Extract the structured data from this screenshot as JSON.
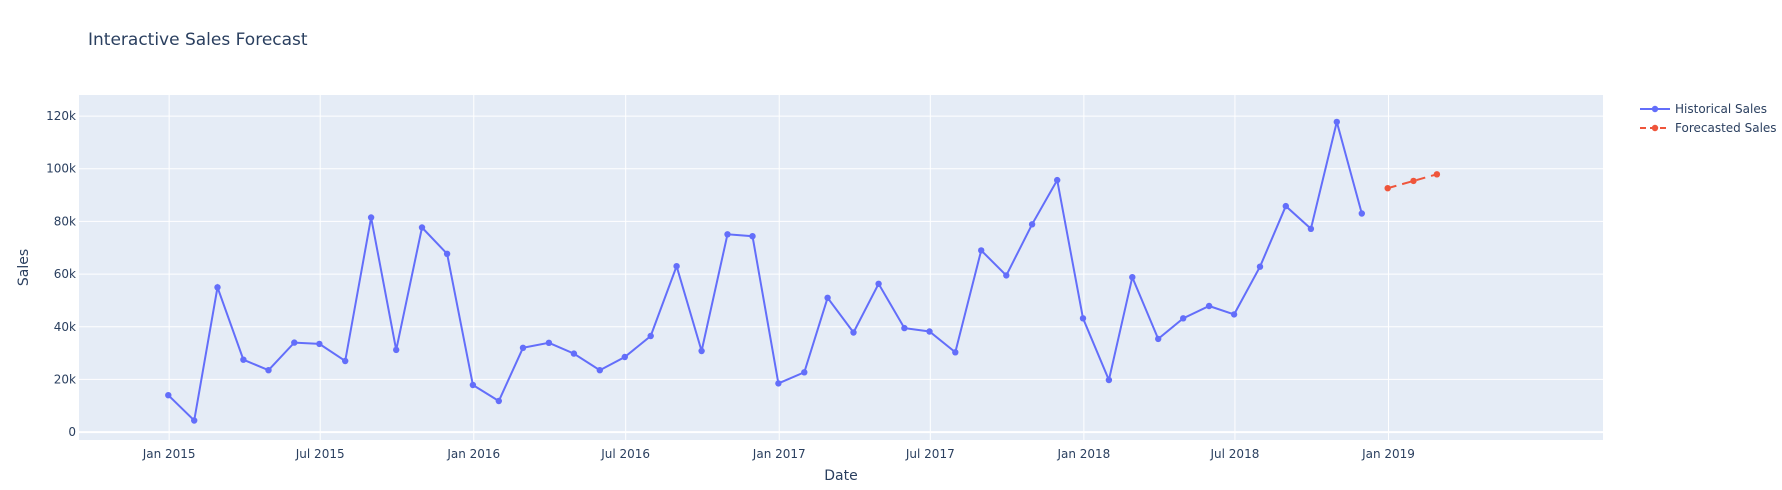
{
  "chart_data": {
    "type": "line",
    "title": "Interactive Sales Forecast",
    "xlabel": "Date",
    "ylabel": "Sales",
    "x_axis": {
      "type": "date",
      "range": [
        "2014-09-15",
        "2019-09-15"
      ],
      "ticks": [
        {
          "date": "2015-01-01",
          "label": "Jan 2015"
        },
        {
          "date": "2015-07-01",
          "label": "Jul 2015"
        },
        {
          "date": "2016-01-01",
          "label": "Jan 2016"
        },
        {
          "date": "2016-07-01",
          "label": "Jul 2016"
        },
        {
          "date": "2017-01-01",
          "label": "Jan 2017"
        },
        {
          "date": "2017-07-01",
          "label": "Jul 2017"
        },
        {
          "date": "2018-01-01",
          "label": "Jan 2018"
        },
        {
          "date": "2018-07-01",
          "label": "Jul 2018"
        },
        {
          "date": "2019-01-01",
          "label": "Jan 2019"
        }
      ]
    },
    "y_axis": {
      "range": [
        -3000,
        128000
      ],
      "ticks": [
        {
          "value": 0,
          "label": "0"
        },
        {
          "value": 20000,
          "label": "20k"
        },
        {
          "value": 40000,
          "label": "40k"
        },
        {
          "value": 60000,
          "label": "60k"
        },
        {
          "value": 80000,
          "label": "80k"
        },
        {
          "value": 100000,
          "label": "100k"
        },
        {
          "value": 120000,
          "label": "120k"
        }
      ]
    },
    "grid": true,
    "legend_position": "top-right",
    "series": [
      {
        "name": "Historical Sales",
        "color": "#636efa",
        "dash": "solid",
        "x": [
          "2014-12-31",
          "2015-01-31",
          "2015-02-28",
          "2015-03-31",
          "2015-04-30",
          "2015-05-31",
          "2015-06-30",
          "2015-07-31",
          "2015-08-31",
          "2015-09-30",
          "2015-10-31",
          "2015-11-30",
          "2015-12-31",
          "2016-01-31",
          "2016-02-29",
          "2016-03-31",
          "2016-04-30",
          "2016-05-31",
          "2016-06-30",
          "2016-07-31",
          "2016-08-31",
          "2016-09-30",
          "2016-10-31",
          "2016-11-30",
          "2016-12-31",
          "2017-01-31",
          "2017-02-28",
          "2017-03-31",
          "2017-04-30",
          "2017-05-31",
          "2017-06-30",
          "2017-07-31",
          "2017-08-31",
          "2017-09-30",
          "2017-10-31",
          "2017-11-30",
          "2017-12-31",
          "2018-01-31",
          "2018-02-28",
          "2018-03-31",
          "2018-04-30",
          "2018-05-31",
          "2018-06-30",
          "2018-07-31",
          "2018-08-31",
          "2018-09-30",
          "2018-10-31",
          "2018-11-30"
        ],
        "values": [
          14000,
          4400,
          55000,
          27500,
          23500,
          34000,
          33500,
          27000,
          81500,
          31200,
          77700,
          67700,
          17900,
          11800,
          32000,
          33900,
          29800,
          23500,
          28500,
          36500,
          63000,
          30800,
          75100,
          74400,
          18500,
          22700,
          51000,
          37800,
          56300,
          39500,
          38200,
          30300,
          69000,
          59500,
          78900,
          95700,
          43200,
          19800,
          58800,
          35400,
          43200,
          47900,
          44700,
          62800,
          85800,
          77200,
          117800,
          83000
        ]
      },
      {
        "name": "Forecasted Sales",
        "color": "#ef553b",
        "dash": "dash",
        "x": [
          "2018-12-31",
          "2019-01-31",
          "2019-02-28"
        ],
        "values": [
          92600,
          95400,
          97900
        ]
      }
    ]
  }
}
